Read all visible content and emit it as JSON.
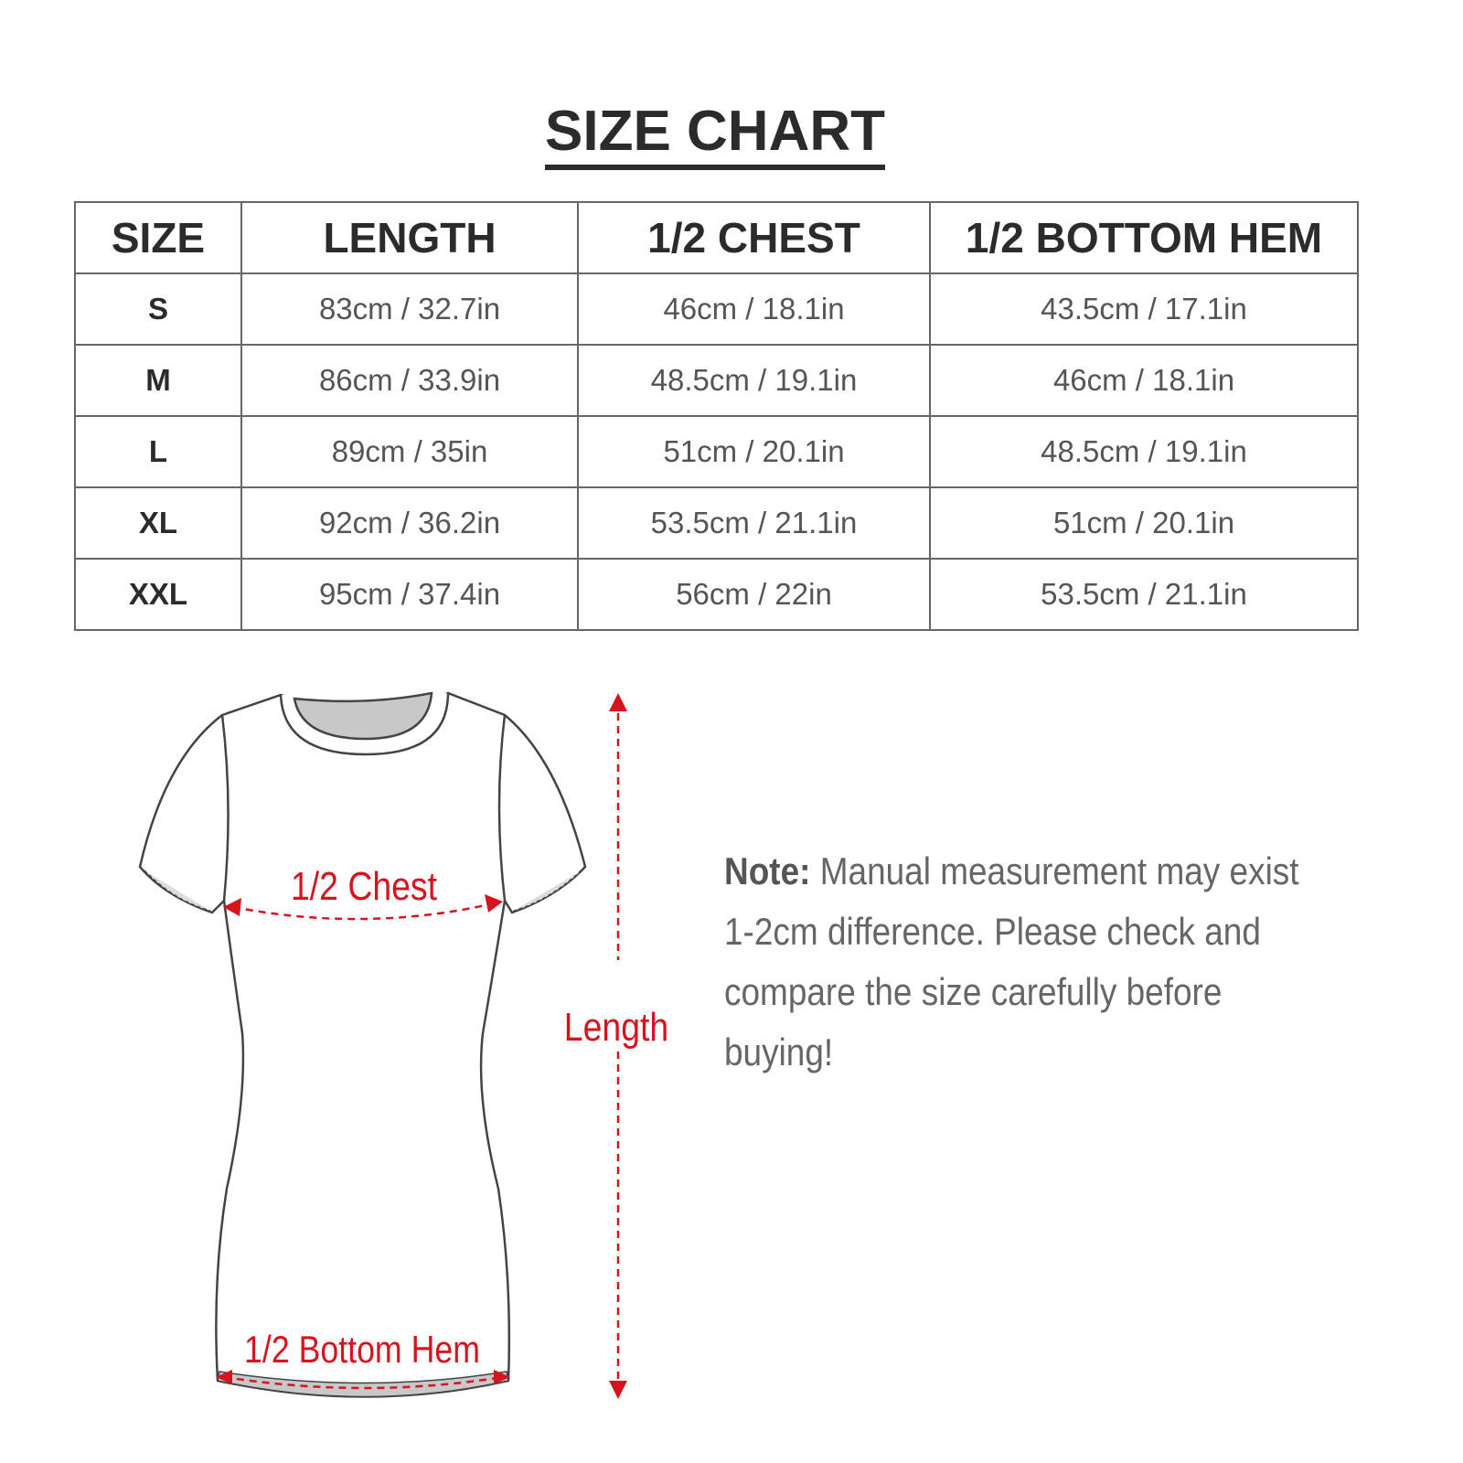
{
  "title": "SIZE CHART",
  "table": {
    "headers": [
      "SIZE",
      "LENGTH",
      "1/2 CHEST",
      "1/2 BOTTOM HEM"
    ],
    "rows": [
      [
        "S",
        "83cm / 32.7in",
        "46cm / 18.1in",
        "43.5cm / 17.1in"
      ],
      [
        "M",
        "86cm / 33.9in",
        "48.5cm / 19.1in",
        "46cm / 18.1in"
      ],
      [
        "L",
        "89cm / 35in",
        "51cm / 20.1in",
        "48.5cm / 19.1in"
      ],
      [
        "XL",
        "92cm / 36.2in",
        "53.5cm / 21.1in",
        "51cm / 20.1in"
      ],
      [
        "XXL",
        "95cm / 37.4in",
        "56cm / 22in",
        "53.5cm / 21.1in"
      ]
    ]
  },
  "diagram": {
    "chest_label": "1/2 Chest",
    "length_label": "Length",
    "hem_label": "1/2 Bottom Hem",
    "accent_color": "#d7141e"
  },
  "note": {
    "label": "Note:",
    "text": "Manual measurement may exist 1-2cm difference. Please check and compare the size carefully before buying!"
  }
}
